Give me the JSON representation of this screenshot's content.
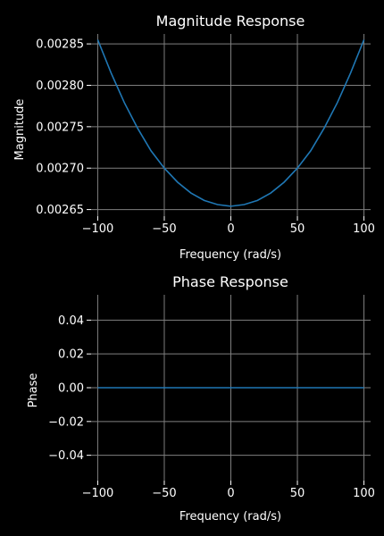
{
  "chart_data": [
    {
      "type": "line",
      "title": "Magnitude Response",
      "xlabel": "Frequency (rad/s)",
      "ylabel": "Magnitude",
      "xlim": [
        -105,
        105
      ],
      "ylim": [
        0.002642,
        0.002862
      ],
      "xticks": [
        -100,
        -50,
        0,
        50,
        100
      ],
      "xtick_labels": [
        "−100",
        "−50",
        "0",
        "50",
        "100"
      ],
      "yticks": [
        0.00265,
        0.0027,
        0.00275,
        0.0028,
        0.00285
      ],
      "ytick_labels": [
        "0.00265",
        "0.00270",
        "0.00275",
        "0.00280",
        "0.00285"
      ],
      "grid": true,
      "series": [
        {
          "color": "#1f77b4",
          "x": [
            -100,
            -90,
            -80,
            -70,
            -60,
            -50,
            -40,
            -30,
            -20,
            -10,
            0,
            10,
            20,
            30,
            40,
            50,
            60,
            70,
            80,
            90,
            100
          ],
          "y": [
            0.002855,
            0.002815,
            0.002779,
            0.002748,
            0.002721,
            0.0027,
            0.002683,
            0.00267,
            0.002661,
            0.002656,
            0.002654,
            0.002656,
            0.002661,
            0.00267,
            0.002683,
            0.0027,
            0.002721,
            0.002748,
            0.002779,
            0.002815,
            0.002855
          ]
        }
      ]
    },
    {
      "type": "line",
      "title": "Phase Response",
      "xlabel": "Frequency (rad/s)",
      "ylabel": "Phase",
      "xlim": [
        -105,
        105
      ],
      "ylim": [
        -0.055,
        0.055
      ],
      "xticks": [
        -100,
        -50,
        0,
        50,
        100
      ],
      "xtick_labels": [
        "−100",
        "−50",
        "0",
        "50",
        "100"
      ],
      "yticks": [
        -0.04,
        -0.02,
        0.0,
        0.02,
        0.04
      ],
      "ytick_labels": [
        "−0.04",
        "−0.02",
        "0.00",
        "0.02",
        "0.04"
      ],
      "grid": true,
      "series": [
        {
          "color": "#1f77b4",
          "x": [
            -100,
            -50,
            0,
            50,
            100
          ],
          "y": [
            0,
            0,
            0,
            0,
            0
          ]
        }
      ]
    }
  ]
}
